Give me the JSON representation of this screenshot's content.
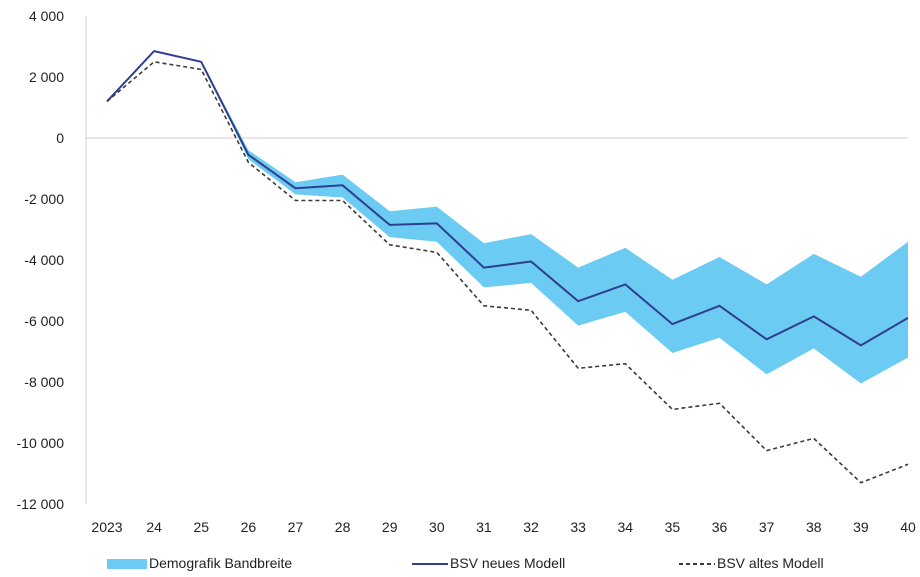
{
  "chart_data": {
    "type": "line",
    "title": "",
    "xlabel": "",
    "ylabel": "",
    "categories": [
      "2023",
      "24",
      "25",
      "26",
      "27",
      "28",
      "29",
      "30",
      "31",
      "32",
      "33",
      "34",
      "35",
      "36",
      "37",
      "38",
      "39",
      "40"
    ],
    "ylim": [
      -12000,
      4000
    ],
    "yticks": [
      4000,
      2000,
      0,
      -2000,
      -4000,
      -6000,
      -8000,
      -10000,
      -12000
    ],
    "ytick_labels": [
      "4 000",
      "2 000",
      "0",
      "-2 000",
      "-4 000",
      "-6 000",
      "-8 000",
      "-10 000",
      "-12 000"
    ],
    "grid": false,
    "legend_position": "bottom",
    "band": {
      "name": "Demografik Bandbreite",
      "color": "#6ccbf2",
      "upper": [
        1200,
        2850,
        2550,
        -400,
        -1450,
        -1200,
        -2400,
        -2250,
        -3450,
        -3150,
        -4250,
        -3600,
        -4650,
        -3900,
        -4800,
        -3800,
        -4550,
        -3400
      ],
      "lower": [
        1200,
        2850,
        2550,
        -700,
        -1850,
        -1950,
        -3250,
        -3400,
        -4900,
        -4750,
        -6150,
        -5700,
        -7050,
        -6550,
        -7750,
        -6900,
        -8050,
        -7200
      ]
    },
    "series": [
      {
        "name": "BSV neues Modell",
        "color": "#2e3f8f",
        "style": "solid",
        "values": [
          1200,
          2850,
          2500,
          -550,
          -1650,
          -1550,
          -2850,
          -2800,
          -4250,
          -4050,
          -5350,
          -4800,
          -6100,
          -5500,
          -6600,
          -5850,
          -6800,
          -5900
        ]
      },
      {
        "name": "BSV altes Modell",
        "color": "#3a3a3a",
        "style": "dashed",
        "values": [
          1200,
          2500,
          2250,
          -800,
          -2050,
          -2050,
          -3500,
          -3750,
          -5500,
          -5650,
          -7550,
          -7400,
          -8900,
          -8700,
          -10250,
          -9850,
          -11300,
          -10700
        ]
      }
    ]
  }
}
